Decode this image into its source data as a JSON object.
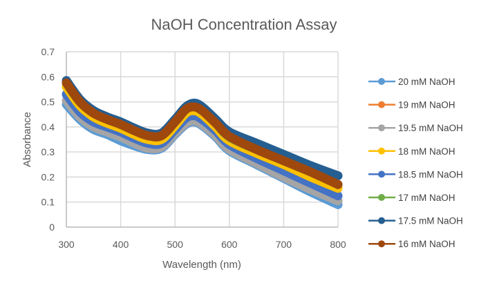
{
  "chart_data": {
    "type": "line",
    "title": "NaOH Concentration Assay",
    "xlabel": "Wavelength (nm)",
    "ylabel": "Absorbance",
    "xlim": [
      300,
      800
    ],
    "ylim": [
      0,
      0.7
    ],
    "x_ticks": [
      "300",
      "400",
      "500",
      "600",
      "700",
      "800"
    ],
    "y_ticks": [
      "0",
      "0.1",
      "0.2",
      "0.3",
      "0.4",
      "0.5",
      "0.6",
      "0.7"
    ],
    "grid": true,
    "legend_position": "right",
    "x": [
      300,
      325,
      350,
      375,
      400,
      425,
      450,
      475,
      500,
      520,
      535,
      550,
      575,
      600,
      650,
      700,
      750,
      800
    ],
    "series": [
      {
        "name": "20 mM NaOH",
        "color": "#5B9BD5",
        "values": [
          0.49,
          0.43,
          0.39,
          0.37,
          0.345,
          0.325,
          0.31,
          0.315,
          0.37,
          0.41,
          0.42,
          0.405,
          0.36,
          0.305,
          0.25,
          0.195,
          0.14,
          0.09
        ]
      },
      {
        "name": "19 mM NaOH",
        "color": "#ED7D31",
        "values": [
          0.575,
          0.5,
          0.455,
          0.43,
          0.41,
          0.385,
          0.365,
          0.365,
          0.42,
          0.47,
          0.48,
          0.465,
          0.415,
          0.36,
          0.31,
          0.265,
          0.22,
          0.17
        ]
      },
      {
        "name": "19.5 mM NaOH",
        "color": "#A5A5A5",
        "values": [
          0.505,
          0.44,
          0.4,
          0.38,
          0.36,
          0.335,
          0.315,
          0.32,
          0.375,
          0.415,
          0.425,
          0.41,
          0.365,
          0.31,
          0.255,
          0.2,
          0.15,
          0.105
        ]
      },
      {
        "name": "18 mM NaOH",
        "color": "#FFC000",
        "values": [
          0.56,
          0.485,
          0.44,
          0.415,
          0.395,
          0.37,
          0.35,
          0.35,
          0.405,
          0.455,
          0.465,
          0.45,
          0.4,
          0.345,
          0.295,
          0.25,
          0.2,
          0.155
        ]
      },
      {
        "name": "18.5 mM NaOH",
        "color": "#4472C4",
        "values": [
          0.53,
          0.46,
          0.42,
          0.4,
          0.38,
          0.355,
          0.335,
          0.335,
          0.39,
          0.435,
          0.445,
          0.43,
          0.385,
          0.33,
          0.275,
          0.225,
          0.175,
          0.125
        ]
      },
      {
        "name": "17 mM NaOH",
        "color": "#70AD47",
        "values": [
          0.575,
          0.5,
          0.455,
          0.43,
          0.41,
          0.385,
          0.365,
          0.365,
          0.42,
          0.47,
          0.48,
          0.465,
          0.415,
          0.36,
          0.31,
          0.265,
          0.22,
          0.17
        ]
      },
      {
        "name": "17.5 mM NaOH",
        "color": "#255E91",
        "values": [
          0.585,
          0.51,
          0.465,
          0.44,
          0.42,
          0.395,
          0.375,
          0.375,
          0.43,
          0.48,
          0.495,
          0.48,
          0.43,
          0.38,
          0.335,
          0.29,
          0.245,
          0.205
        ]
      },
      {
        "name": "16 mM NaOH",
        "color": "#9E480E",
        "values": [
          0.576,
          0.5,
          0.455,
          0.43,
          0.41,
          0.385,
          0.365,
          0.365,
          0.42,
          0.47,
          0.48,
          0.465,
          0.415,
          0.362,
          0.31,
          0.265,
          0.22,
          0.17
        ]
      }
    ]
  }
}
